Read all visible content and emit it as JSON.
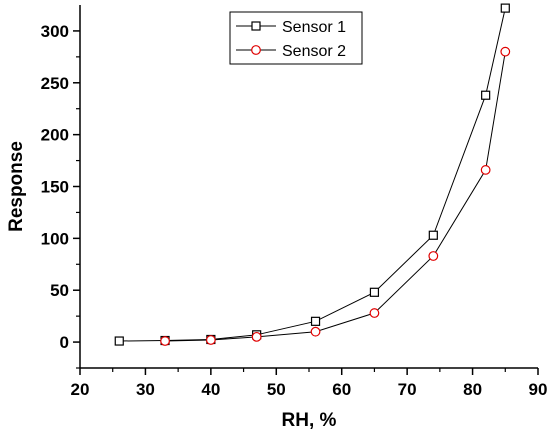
{
  "chart_data": {
    "type": "line",
    "title": "",
    "xlabel": "RH, %",
    "ylabel": "Response",
    "xlim": [
      20,
      90
    ],
    "ylim": [
      -25,
      325
    ],
    "xticks": [
      20,
      30,
      40,
      50,
      60,
      70,
      80,
      90
    ],
    "yticks": [
      0,
      50,
      100,
      150,
      200,
      250,
      300
    ],
    "grid": false,
    "legend_position": "top-center",
    "series": [
      {
        "name": "Sensor 1",
        "marker": "square",
        "marker_color": "#000000",
        "line_color": "#000000",
        "x": [
          26,
          33,
          40,
          47,
          56,
          65,
          74,
          82,
          85
        ],
        "y": [
          1,
          1.5,
          2.5,
          7,
          20,
          48,
          103,
          238,
          322
        ]
      },
      {
        "name": "Sensor 2",
        "marker": "circle",
        "marker_color": "#e00000",
        "line_color": "#000000",
        "x": [
          33,
          40,
          47,
          56,
          65,
          74,
          82,
          85
        ],
        "y": [
          1,
          2,
          5,
          10,
          28,
          83,
          166,
          280
        ]
      }
    ]
  }
}
